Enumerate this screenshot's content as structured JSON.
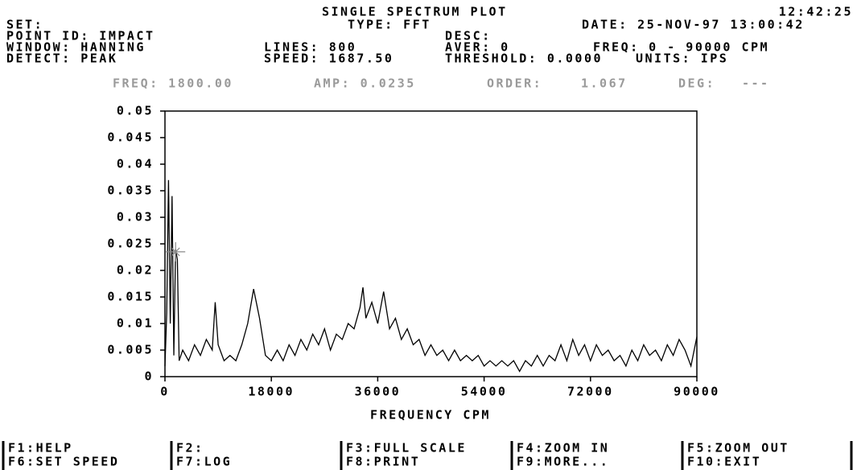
{
  "header": {
    "title": "SINGLE SPECTRUM PLOT",
    "time": "12:42:25",
    "set": "SET:",
    "type": "TYPE: FFT",
    "date": "DATE: 25-NOV-97 13:00:42",
    "point_id": "POINT ID: IMPACT",
    "desc": "DESC:",
    "window": "WINDOW: HANNING",
    "lines": "LINES: 800",
    "aver": "AVER: 0",
    "freq": "FREQ: 0 - 90000 CPM",
    "detect": "DETECT: PEAK",
    "speed": "SPEED: 1687.50",
    "threshold": "THRESHOLD: 0.0000",
    "units": "UNITS: IPS"
  },
  "status": {
    "freq": "FREQ: 1800.00",
    "amp": "AMP: 0.0235",
    "order_label": "ORDER:",
    "order": "1.067",
    "deg_label": "DEG:",
    "deg": "---"
  },
  "chart_data": {
    "type": "line",
    "x_label": "FREQUENCY CPM",
    "x": [
      0,
      300,
      600,
      900,
      1200,
      1500,
      1800,
      2100,
      2400,
      3000,
      4000,
      5000,
      6000,
      7000,
      8000,
      8500,
      9000,
      10000,
      11000,
      12000,
      13000,
      14000,
      15000,
      16000,
      17000,
      18000,
      19000,
      20000,
      21000,
      22000,
      23000,
      24000,
      25000,
      26000,
      27000,
      28000,
      29000,
      30000,
      31000,
      32000,
      33000,
      33500,
      34000,
      35000,
      36000,
      37000,
      38000,
      39000,
      40000,
      41000,
      42000,
      43000,
      44000,
      45000,
      46000,
      47000,
      48000,
      49000,
      50000,
      51000,
      52000,
      53000,
      54000,
      55000,
      56000,
      57000,
      58000,
      59000,
      60000,
      61000,
      62000,
      63000,
      64000,
      65000,
      66000,
      67000,
      68000,
      69000,
      70000,
      71000,
      72000,
      73000,
      74000,
      75000,
      76000,
      77000,
      78000,
      79000,
      80000,
      81000,
      82000,
      83000,
      84000,
      85000,
      86000,
      87000,
      88000,
      89000,
      90000
    ],
    "series": [
      {
        "name": "spectrum",
        "color": "#000000",
        "values": [
          0.002,
          0.012,
          0.037,
          0.01,
          0.034,
          0.004,
          0.024,
          0.022,
          0.003,
          0.005,
          0.003,
          0.006,
          0.004,
          0.007,
          0.005,
          0.014,
          0.006,
          0.003,
          0.004,
          0.003,
          0.006,
          0.01,
          0.0165,
          0.011,
          0.004,
          0.003,
          0.005,
          0.003,
          0.006,
          0.004,
          0.007,
          0.005,
          0.008,
          0.006,
          0.009,
          0.005,
          0.008,
          0.007,
          0.01,
          0.009,
          0.013,
          0.0168,
          0.011,
          0.014,
          0.01,
          0.016,
          0.009,
          0.011,
          0.007,
          0.009,
          0.006,
          0.007,
          0.004,
          0.006,
          0.004,
          0.005,
          0.003,
          0.005,
          0.003,
          0.004,
          0.003,
          0.004,
          0.002,
          0.003,
          0.002,
          0.003,
          0.002,
          0.003,
          0.001,
          0.003,
          0.002,
          0.004,
          0.002,
          0.004,
          0.003,
          0.006,
          0.003,
          0.007,
          0.004,
          0.006,
          0.003,
          0.006,
          0.004,
          0.005,
          0.003,
          0.004,
          0.002,
          0.005,
          0.003,
          0.006,
          0.004,
          0.005,
          0.003,
          0.006,
          0.004,
          0.007,
          0.005,
          0.002,
          0.0075
        ]
      }
    ],
    "cursor": [
      1800,
      0.0235
    ],
    "xlim": [
      0,
      90000
    ],
    "xticks": [
      0,
      18000,
      36000,
      54000,
      72000,
      90000
    ],
    "ylim": [
      0,
      0.05
    ],
    "yticks": [
      0,
      0.005,
      0.01,
      0.015,
      0.02,
      0.025,
      0.03,
      0.035,
      0.04,
      0.045,
      0.05
    ]
  },
  "footer": [
    [
      "F1:HELP",
      "F6:SET SPEED"
    ],
    [
      "F2:",
      "F7:LOG"
    ],
    [
      "F3:FULL SCALE",
      "F8:PRINT"
    ],
    [
      "F4:ZOOM IN",
      "F9:MORE..."
    ],
    [
      "F5:ZOOM OUT",
      "F10:EXIT"
    ]
  ]
}
